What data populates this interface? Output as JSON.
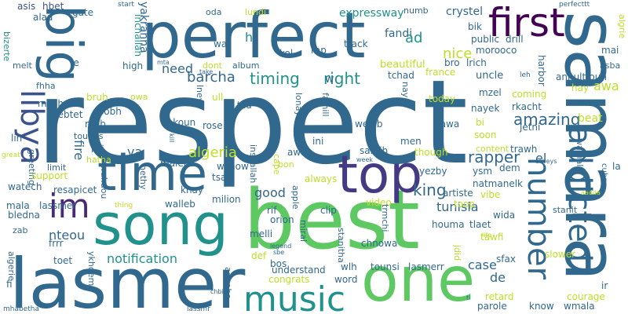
{
  "words": [
    {
      "text": "respect",
      "color": "#31688e"
    },
    {
      "text": "best",
      "color": "#5ec962"
    },
    {
      "text": "samara",
      "color": "#31688e"
    },
    {
      "text": "lasmer",
      "color": "#31688e"
    },
    {
      "text": "perfect",
      "color": "#31688e"
    },
    {
      "text": "song",
      "color": "#21918c"
    },
    {
      "text": "one",
      "color": "#5ec962"
    },
    {
      "text": "big",
      "color": "#31688e"
    },
    {
      "text": "time",
      "color": "#31688e"
    },
    {
      "text": "top",
      "color": "#443983"
    },
    {
      "text": "music",
      "color": "#21918c"
    },
    {
      "text": "first",
      "color": "#440154"
    },
    {
      "text": "number",
      "color": "#31688e"
    },
    {
      "text": "addicted",
      "color": "#31688e"
    },
    {
      "text": "im",
      "color": "#482878"
    },
    {
      "text": "libya",
      "color": "#3b528b"
    },
    {
      "text": "timing",
      "color": "#21918c"
    },
    {
      "text": "right",
      "color": "#21918c"
    },
    {
      "text": "barcha",
      "color": "#31688e"
    },
    {
      "text": "nice",
      "color": "#bddf26"
    },
    {
      "text": "algeria",
      "color": "#bddf26"
    },
    {
      "text": "need",
      "color": "#31688e"
    },
    {
      "text": "beautiful",
      "color": "#bddf26"
    },
    {
      "text": "king",
      "color": "#31688e"
    },
    {
      "text": "amazing",
      "color": "#31688e"
    },
    {
      "text": "notification",
      "color": "#21918c"
    },
    {
      "text": "tunisia",
      "color": "#31688e"
    },
    {
      "text": "rapper",
      "color": "#31688e"
    },
    {
      "text": "good",
      "color": "#31688e"
    },
    {
      "text": "fire",
      "color": "#31688e"
    },
    {
      "text": "awa",
      "color": "#bddf26"
    },
    {
      "text": "yakrahna",
      "color": "#31688e"
    },
    {
      "text": "inchallah",
      "color": "#21918c"
    },
    {
      "text": "expressway",
      "color": "#21918c"
    },
    {
      "text": "crystel",
      "color": "#31688e"
    },
    {
      "text": "asis",
      "color": "#3b528b"
    },
    {
      "text": "hbet",
      "color": "#3b528b"
    },
    {
      "text": "gate",
      "color": "#31688e"
    },
    {
      "text": "start",
      "color": "#31688e"
    },
    {
      "text": "perfecttt",
      "color": "#31688e"
    },
    {
      "text": "algrie",
      "color": "#bddf26"
    },
    {
      "text": "alaa",
      "color": "#31688e"
    },
    {
      "text": "oda",
      "color": "#31688e"
    },
    {
      "text": "lundi",
      "color": "#bddf26"
    },
    {
      "text": "numb",
      "color": "#31688e"
    },
    {
      "text": "fandi",
      "color": "#31688e"
    },
    {
      "text": "bik",
      "color": "#31688e"
    },
    {
      "text": "ad",
      "color": "#21918c"
    },
    {
      "text": "public",
      "color": "#31688e"
    },
    {
      "text": "drill",
      "color": "#31688e"
    },
    {
      "text": "morooco",
      "color": "#31688e"
    },
    {
      "text": "mai",
      "color": "#31688e"
    },
    {
      "text": "asba",
      "color": "#31688e"
    },
    {
      "text": "annultfouh",
      "color": "#31688e"
    },
    {
      "text": "h",
      "color": "#21918c"
    },
    {
      "text": "kol",
      "color": "#31688e"
    },
    {
      "text": "rap",
      "color": "#31688e"
    },
    {
      "text": "track",
      "color": "#31688e"
    },
    {
      "text": "bro",
      "color": "#31688e"
    },
    {
      "text": "lrich",
      "color": "#31688e"
    },
    {
      "text": "harbor",
      "color": "#31688e"
    },
    {
      "text": "uncle",
      "color": "#31688e"
    },
    {
      "text": "tchad",
      "color": "#31688e"
    },
    {
      "text": "france",
      "color": "#bddf26"
    },
    {
      "text": "bizerte",
      "color": "#21918c"
    },
    {
      "text": "melt",
      "color": "#31688e"
    },
    {
      "text": "fhha",
      "color": "#31688e"
    },
    {
      "text": "le",
      "color": "#31688e"
    },
    {
      "text": "mta",
      "color": "#31688e"
    },
    {
      "text": "take",
      "color": "#31688e"
    },
    {
      "text": "dont",
      "color": "#bddf26"
    },
    {
      "text": "album",
      "color": "#31688e"
    },
    {
      "text": "high",
      "color": "#31688e"
    },
    {
      "text": "wa",
      "color": "#31688e"
    },
    {
      "text": "w",
      "color": "#31688e"
    },
    {
      "text": "leh",
      "color": "#31688e"
    },
    {
      "text": "hay",
      "color": "#bddf26"
    },
    {
      "text": "beat",
      "color": "#bddf26"
    },
    {
      "text": "meshow",
      "color": "#31688e"
    },
    {
      "text": "bruh",
      "color": "#bddf26"
    },
    {
      "text": "owa",
      "color": "#bddf26"
    },
    {
      "text": "ull",
      "color": "#bddf26"
    },
    {
      "text": "tila",
      "color": "#31688e"
    },
    {
      "text": "lneya",
      "color": "#31688e"
    },
    {
      "text": "naya",
      "color": "#31688e"
    },
    {
      "text": "mzel",
      "color": "#31688e"
    },
    {
      "text": "today",
      "color": "#bddf26"
    },
    {
      "text": "coming",
      "color": "#bddf26"
    },
    {
      "text": "nayek",
      "color": "#31688e"
    },
    {
      "text": "rkacht",
      "color": "#31688e"
    },
    {
      "text": "jetni",
      "color": "#31688e"
    },
    {
      "text": "hebtet",
      "color": "#31688e"
    },
    {
      "text": "mhb",
      "color": "#31688e"
    },
    {
      "text": "sobh",
      "color": "#31688e"
    },
    {
      "text": "lvl",
      "color": "#31688e"
    },
    {
      "text": "chkoun",
      "color": "#31688e"
    },
    {
      "text": "rose",
      "color": "#31688e"
    },
    {
      "text": "lonaya",
      "color": "#31688e"
    },
    {
      "text": "famill",
      "color": "#31688e"
    },
    {
      "text": "weleb",
      "color": "#31688e"
    },
    {
      "text": "tawa",
      "color": "#31688e"
    },
    {
      "text": "bi",
      "color": "#bddf26"
    },
    {
      "text": "soon",
      "color": "#bddf26"
    },
    {
      "text": "lin",
      "color": "#31688e"
    },
    {
      "text": "lilli",
      "color": "#31688e"
    },
    {
      "text": "ya",
      "color": "#31688e"
    },
    {
      "text": "hatha",
      "color": "#bddf26"
    },
    {
      "text": "maleha",
      "color": "#31688e"
    },
    {
      "text": "ini",
      "color": "#31688e"
    },
    {
      "text": "men",
      "color": "#31688e"
    },
    {
      "text": "awaa",
      "color": "#31688e"
    },
    {
      "text": "samih",
      "color": "#31688e"
    },
    {
      "text": "though",
      "color": "#bddf26"
    },
    {
      "text": "content",
      "color": "#bddf26"
    },
    {
      "text": "trawh",
      "color": "#31688e"
    },
    {
      "text": "el",
      "color": "#31688e"
    },
    {
      "text": "dem",
      "color": "#31688e"
    },
    {
      "text": "yezby",
      "color": "#31688e"
    },
    {
      "text": "ysm",
      "color": "#31688e"
    },
    {
      "text": "natmanelk",
      "color": "#31688e"
    },
    {
      "text": "vibe",
      "color": "#bddf26"
    },
    {
      "text": "wamala",
      "color": "#31688e"
    },
    {
      "text": "cuba",
      "color": "#31688e"
    },
    {
      "text": "la",
      "color": "#31688e"
    },
    {
      "text": "great",
      "color": "#bddf26"
    },
    {
      "text": "kill",
      "color": "#31688e"
    },
    {
      "text": "greeting",
      "color": "#31688e"
    },
    {
      "text": "limit",
      "color": "#31688e"
    },
    {
      "text": "support",
      "color": "#bddf26"
    },
    {
      "text": "watech",
      "color": "#31688e"
    },
    {
      "text": "resapicet",
      "color": "#31688e"
    },
    {
      "text": "wahdou",
      "color": "#31688e"
    },
    {
      "text": "hethy",
      "color": "#31688e"
    },
    {
      "text": "wshow",
      "color": "#31688e"
    },
    {
      "text": "tsali",
      "color": "#31688e"
    },
    {
      "text": "khay",
      "color": "#31688e"
    },
    {
      "text": "walleb",
      "color": "#31688e"
    },
    {
      "text": "cape",
      "color": "#bddf26"
    },
    {
      "text": "bon",
      "color": "#bddf26"
    },
    {
      "text": "always",
      "color": "#bddf26"
    },
    {
      "text": "apple",
      "color": "#31688e"
    },
    {
      "text": "week",
      "color": "#31688e"
    },
    {
      "text": "alweys",
      "color": "#31688e"
    },
    {
      "text": "artiste",
      "color": "#31688e"
    },
    {
      "text": "wida",
      "color": "#31688e"
    },
    {
      "text": "toop",
      "color": "#bddf26"
    },
    {
      "text": "algerie",
      "color": "#31688e"
    },
    {
      "text": "mala",
      "color": "#31688e"
    },
    {
      "text": "lassmer",
      "color": "#31688e"
    },
    {
      "text": "bledna",
      "color": "#31688e"
    },
    {
      "text": "thing",
      "color": "#bddf26"
    },
    {
      "text": "nteou",
      "color": "#31688e"
    },
    {
      "text": "zab",
      "color": "#31688e"
    },
    {
      "text": "milion",
      "color": "#31688e"
    },
    {
      "text": "rif",
      "color": "#31688e"
    },
    {
      "text": "miral",
      "color": "#31688e"
    },
    {
      "text": "clip",
      "color": "#31688e"
    },
    {
      "text": "video",
      "color": "#bddf26"
    },
    {
      "text": "trmchi",
      "color": "#31688e"
    },
    {
      "text": "houma",
      "color": "#31688e"
    },
    {
      "text": "tlaet",
      "color": "#31688e"
    },
    {
      "text": "stanit",
      "color": "#31688e"
    },
    {
      "text": "aadda",
      "color": "#bddf26"
    },
    {
      "text": "tawfi",
      "color": "#bddf26"
    },
    {
      "text": "life",
      "color": "#bddf26"
    },
    {
      "text": "sfax",
      "color": "#31688e"
    },
    {
      "text": "slower",
      "color": "#bddf26"
    },
    {
      "text": "orion",
      "color": "#31688e"
    },
    {
      "text": "legend",
      "color": "#31688e"
    },
    {
      "text": "sbe",
      "color": "#31688e"
    },
    {
      "text": "stanitha",
      "color": "#31688e"
    },
    {
      "text": "chnowa",
      "color": "#31688e"
    },
    {
      "text": "jdid",
      "color": "#bddf26"
    },
    {
      "text": "toet",
      "color": "#31688e"
    },
    {
      "text": "frrr",
      "color": "#31688e"
    },
    {
      "text": "def",
      "color": "#bddf26"
    },
    {
      "text": "bos",
      "color": "#31688e"
    },
    {
      "text": "case",
      "color": "#31688e"
    },
    {
      "text": "de",
      "color": "#31688e"
    },
    {
      "text": "ykhdem",
      "color": "#31688e"
    },
    {
      "text": "understand",
      "color": "#31688e"
    },
    {
      "text": "congrats",
      "color": "#bddf26"
    },
    {
      "text": "wlh",
      "color": "#31688e"
    },
    {
      "text": "word",
      "color": "#31688e"
    },
    {
      "text": "tounsi",
      "color": "#31688e"
    },
    {
      "text": "lasmerr",
      "color": "#31688e"
    },
    {
      "text": "ir",
      "color": "#31688e"
    },
    {
      "text": "fi",
      "color": "#31688e"
    },
    {
      "text": "annaba",
      "color": "#31688e"
    },
    {
      "text": "chbih",
      "color": "#31688e"
    },
    {
      "text": "retard",
      "color": "#bddf26"
    },
    {
      "text": "courage",
      "color": "#bddf26"
    },
    {
      "text": "parole",
      "color": "#31688e"
    },
    {
      "text": "know",
      "color": "#31688e"
    },
    {
      "text": "wmala",
      "color": "#31688e"
    },
    {
      "text": "mhabetha",
      "color": "#31688e"
    },
    {
      "text": "lassmr",
      "color": "#31688e"
    },
    {
      "text": "ti",
      "color": "#31688e"
    },
    {
      "text": "inshallah",
      "color": "#31688e"
    },
    {
      "text": "melli",
      "color": "#31688e"
    },
    {
      "text": "tounes",
      "color": "#31688e"
    }
  ]
}
